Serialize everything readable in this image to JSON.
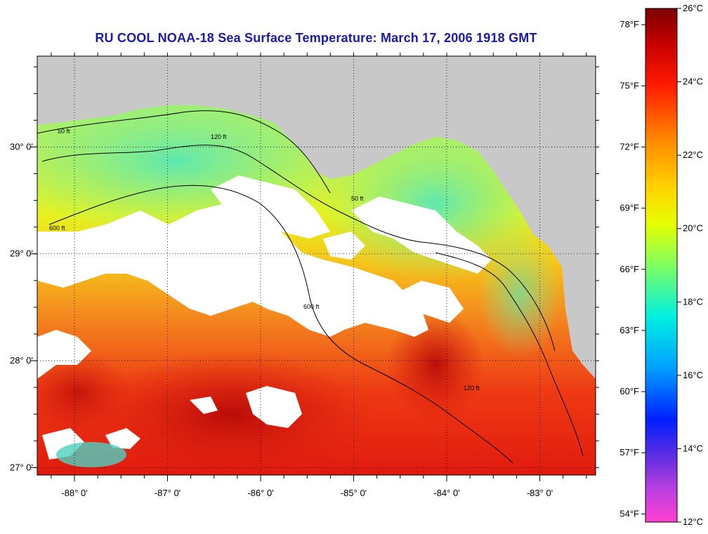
{
  "title": "RU COOL  NOAA-18  Sea Surface Temperature:  March 17, 2006 1918 GMT",
  "map": {
    "lon_range": [
      -88.4,
      -82.4
    ],
    "lat_range": [
      26.93,
      30.85
    ],
    "x_ticks": [
      {
        "value": -88,
        "label": "-88° 0'"
      },
      {
        "value": -87,
        "label": "-87° 0'"
      },
      {
        "value": -86,
        "label": "-86° 0'"
      },
      {
        "value": -85,
        "label": "-85° 0'"
      },
      {
        "value": -84,
        "label": "-84° 0'"
      },
      {
        "value": -83,
        "label": "-83° 0'"
      }
    ],
    "y_ticks": [
      {
        "value": 30,
        "label": "30° 0'"
      },
      {
        "value": 29,
        "label": "29° 0'"
      },
      {
        "value": 28,
        "label": "28° 0'"
      },
      {
        "value": 27,
        "label": "27° 0'"
      }
    ],
    "contour_labels": [
      "50 ft",
      "120 ft",
      "600 ft"
    ],
    "colors": {
      "land": "#c8c8c8",
      "cloud": "#ffffff",
      "frame": "#000000"
    }
  },
  "colorbar": {
    "celsius_labels": [
      "26°C",
      "24°C",
      "22°C",
      "20°C",
      "18°C",
      "16°C",
      "14°C",
      "12°C"
    ],
    "fahrenheit_labels": [
      "78°F",
      "75°F",
      "72°F",
      "69°F",
      "66°F",
      "63°F",
      "60°F",
      "57°F",
      "54°F"
    ],
    "range_c": [
      12,
      26
    ]
  }
}
